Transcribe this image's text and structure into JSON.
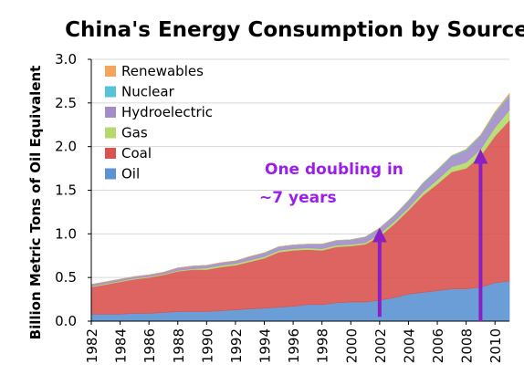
{
  "chart_data": {
    "type": "area",
    "stacked": true,
    "title": "China's Energy Consumption by Source",
    "ylabel": "Billion Metric Tons of Oil Equivalent",
    "xlabel": "",
    "ylim": [
      0,
      3.0
    ],
    "xlim": [
      1982,
      2011
    ],
    "yticks": [
      "0.0",
      "0.5",
      "1.0",
      "1.5",
      "2.0",
      "2.5",
      "3.0"
    ],
    "xticks": [
      "1982",
      "1984",
      "1986",
      "1988",
      "1990",
      "1992",
      "1994",
      "1996",
      "1998",
      "2000",
      "2002",
      "2004",
      "2006",
      "2008",
      "2010"
    ],
    "grid": "horizontal",
    "legend_position": "top-left",
    "x": [
      1982,
      1983,
      1984,
      1985,
      1986,
      1987,
      1988,
      1989,
      1990,
      1991,
      1992,
      1993,
      1994,
      1995,
      1996,
      1997,
      1998,
      1999,
      2000,
      2001,
      2002,
      2003,
      2004,
      2005,
      2006,
      2007,
      2008,
      2009,
      2010,
      2011
    ],
    "series": [
      {
        "name": "Oil",
        "color": "#5b93d3",
        "values": [
          0.08,
          0.08,
          0.08,
          0.09,
          0.09,
          0.1,
          0.11,
          0.11,
          0.11,
          0.12,
          0.13,
          0.14,
          0.15,
          0.16,
          0.17,
          0.19,
          0.19,
          0.21,
          0.22,
          0.22,
          0.24,
          0.27,
          0.31,
          0.33,
          0.35,
          0.37,
          0.37,
          0.39,
          0.44,
          0.46
        ]
      },
      {
        "name": "Coal",
        "color": "#d9534f",
        "values": [
          0.31,
          0.34,
          0.37,
          0.39,
          0.41,
          0.43,
          0.46,
          0.48,
          0.48,
          0.5,
          0.51,
          0.54,
          0.57,
          0.63,
          0.64,
          0.63,
          0.62,
          0.64,
          0.64,
          0.66,
          0.73,
          0.84,
          0.96,
          1.11,
          1.22,
          1.34,
          1.38,
          1.5,
          1.68,
          1.84
        ]
      },
      {
        "name": "Gas",
        "color": "#b5d96e",
        "values": [
          0.01,
          0.01,
          0.01,
          0.01,
          0.01,
          0.01,
          0.01,
          0.01,
          0.02,
          0.02,
          0.02,
          0.02,
          0.02,
          0.02,
          0.02,
          0.02,
          0.02,
          0.02,
          0.02,
          0.02,
          0.03,
          0.03,
          0.03,
          0.04,
          0.05,
          0.06,
          0.07,
          0.08,
          0.1,
          0.12
        ]
      },
      {
        "name": "Hydroelectric",
        "color": "#a28dc9",
        "values": [
          0.02,
          0.02,
          0.02,
          0.02,
          0.02,
          0.02,
          0.03,
          0.03,
          0.03,
          0.03,
          0.03,
          0.04,
          0.04,
          0.04,
          0.04,
          0.04,
          0.05,
          0.05,
          0.05,
          0.06,
          0.06,
          0.06,
          0.07,
          0.09,
          0.1,
          0.11,
          0.13,
          0.14,
          0.15,
          0.15
        ]
      },
      {
        "name": "Nuclear",
        "color": "#57c3d6",
        "values": [
          0,
          0,
          0,
          0,
          0,
          0,
          0,
          0,
          0,
          0,
          0,
          0,
          0.003,
          0.003,
          0.003,
          0.003,
          0.003,
          0.004,
          0.004,
          0.004,
          0.006,
          0.01,
          0.012,
          0.012,
          0.013,
          0.014,
          0.015,
          0.016,
          0.017,
          0.02
        ]
      },
      {
        "name": "Renewables",
        "color": "#f5a45c",
        "values": [
          0,
          0,
          0,
          0,
          0,
          0,
          0,
          0,
          0,
          0,
          0,
          0,
          0,
          0,
          0,
          0,
          0,
          0,
          0,
          0,
          0,
          0,
          0.001,
          0.001,
          0.002,
          0.003,
          0.004,
          0.008,
          0.012,
          0.018
        ]
      }
    ],
    "annotations": [
      {
        "text_lines": [
          "One doubling in",
          "~7 years"
        ],
        "color": "#9b1fe8"
      }
    ],
    "arrows": [
      {
        "x": 2002,
        "from": 0.05,
        "to": 1.05,
        "color": "#8a1fc4"
      },
      {
        "x": 2009,
        "from": 0.0,
        "to": 1.95,
        "color": "#8a1fc4"
      }
    ]
  }
}
